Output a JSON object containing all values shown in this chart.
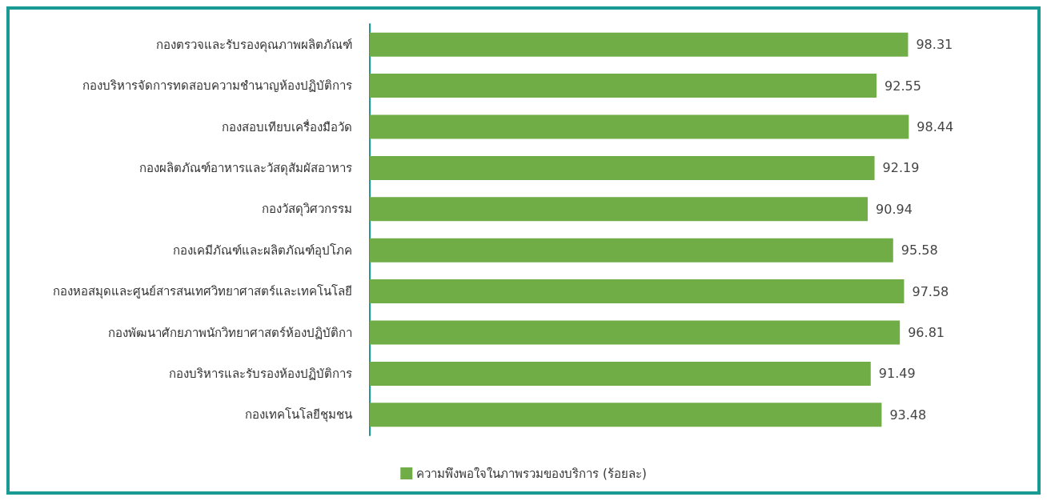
{
  "chart_data": {
    "type": "bar",
    "orientation": "horizontal",
    "categories": [
      "กองตรวจและรับรองคุณภาพผลิตภัณฑ์",
      "กองบริหารจัดการทดสอบความชำนาญห้องปฏิบัติการ",
      "กองสอบเทียบเครื่องมือวัด",
      "กองผลิตภัณฑ์อาหารและวัสดุสัมผัสอาหาร",
      "กองวัสดุวิศวกรรม",
      "กองเคมีภัณฑ์และผลิตภัณฑ์อุปโภค",
      "กองหอสมุดและศูนย์สารสนเทศวิทยาศาสตร์และเทคโนโลยี",
      "กองพัฒนาศักยภาพนักวิทยาศาสตร์ห้องปฏิบัติกา",
      "กองบริหารและรับรองห้องปฏิบัติการ",
      "กองเทคโนโลยีชุมชน"
    ],
    "series": [
      {
        "name": "ความพึงพอใจในภาพรวมของบริการ (ร้อยละ)",
        "color": "#70ad47",
        "values": [
          98.31,
          92.55,
          98.44,
          92.19,
          90.94,
          95.58,
          97.58,
          96.81,
          91.49,
          93.48
        ]
      }
    ],
    "data_labels": true,
    "legend": "bottom",
    "grid": false,
    "tick_labels": "y"
  }
}
